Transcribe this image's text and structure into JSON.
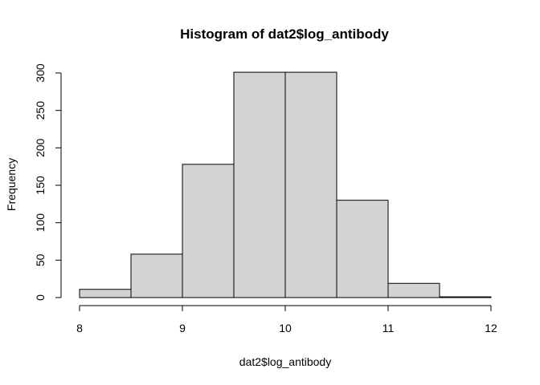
{
  "chart_data": {
    "type": "bar",
    "title": "Histogram of dat2$log_antibody",
    "xlabel": "dat2$log_antibody",
    "ylabel": "Frequency",
    "bins": [
      {
        "x0": 8.0,
        "x1": 8.5,
        "count": 11
      },
      {
        "x0": 8.5,
        "x1": 9.0,
        "count": 58
      },
      {
        "x0": 9.0,
        "x1": 9.5,
        "count": 178
      },
      {
        "x0": 9.5,
        "x1": 10.0,
        "count": 301
      },
      {
        "x0": 10.0,
        "x1": 10.5,
        "count": 301
      },
      {
        "x0": 10.5,
        "x1": 11.0,
        "count": 130
      },
      {
        "x0": 11.0,
        "x1": 11.5,
        "count": 19
      },
      {
        "x0": 11.5,
        "x1": 12.0,
        "count": 1
      }
    ],
    "xlim": [
      8,
      12
    ],
    "ylim": [
      0,
      300
    ],
    "xticks": [
      "8",
      "9",
      "10",
      "11",
      "12"
    ],
    "yticks": [
      "0",
      "50",
      "100",
      "150",
      "200",
      "250",
      "300"
    ],
    "grid": false,
    "colors": {
      "bar_fill": "#d3d3d3",
      "bar_stroke": "#000000"
    }
  }
}
